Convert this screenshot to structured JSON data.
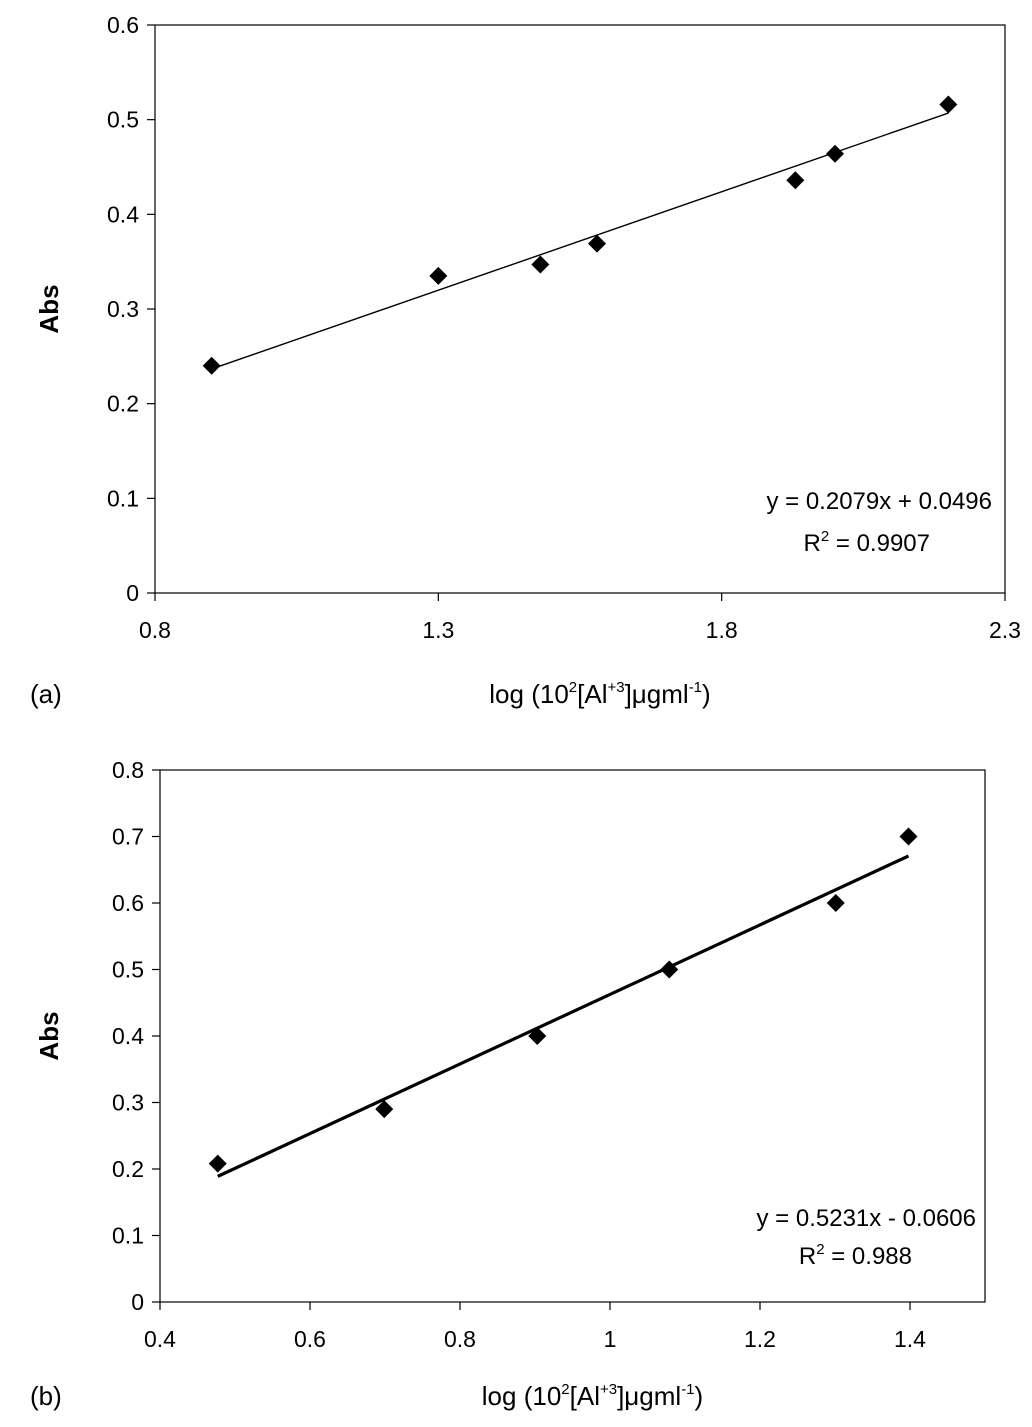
{
  "chart_data": [
    {
      "type": "scatter",
      "panel_label": "(a)",
      "ylabel": "Abs",
      "xlabel": {
        "pre": "log (10",
        "sup1": "2",
        "mid": "[Al",
        "sup2": "+3",
        "post1": "]μgml",
        "sup3": "-1",
        "post2": ")"
      },
      "xlim": [
        0.8,
        2.3
      ],
      "ylim": [
        0,
        0.6
      ],
      "xticks": [
        0.8,
        1.3,
        1.8,
        2.3
      ],
      "xtick_labels": [
        "0.8",
        "1.3",
        "1.8",
        "2.3"
      ],
      "yticks": [
        0,
        0.1,
        0.2,
        0.3,
        0.4,
        0.5,
        0.6
      ],
      "ytick_labels": [
        "0",
        "0.1",
        "0.2",
        "0.3",
        "0.4",
        "0.5",
        "0.6"
      ],
      "grid": false,
      "marker": "diamond",
      "series": [
        {
          "x": [
            0.9,
            1.3,
            1.48,
            1.58,
            1.93,
            2.0,
            2.2
          ],
          "y": [
            0.24,
            0.335,
            0.347,
            0.369,
            0.436,
            0.464,
            0.516
          ]
        }
      ],
      "trendline": {
        "slope": 0.2079,
        "intercept": 0.0496,
        "x_range": [
          0.9,
          2.2
        ]
      },
      "equation": "y = 0.2079x + 0.0496",
      "r2": {
        "prefix": "R",
        "sup": "2",
        "suffix": " = 0.9907"
      },
      "annotation_position": "bottom-right"
    },
    {
      "type": "scatter",
      "panel_label": "(b)",
      "ylabel": "Abs",
      "xlabel": {
        "pre": "log (10",
        "sup1": "2",
        "mid": "[Al",
        "sup2": "+3",
        "post1": "]μgml",
        "sup3": "-1",
        "post2": ")"
      },
      "xlim": [
        0.4,
        1.5
      ],
      "ylim": [
        0,
        0.8
      ],
      "xticks": [
        0.4,
        0.6,
        0.8,
        1.0,
        1.2,
        1.4
      ],
      "xtick_labels": [
        "0.4",
        "0.6",
        "0.8",
        "1",
        "1.2",
        "1.4"
      ],
      "yticks": [
        0,
        0.1,
        0.2,
        0.3,
        0.4,
        0.5,
        0.6,
        0.7,
        0.8
      ],
      "ytick_labels": [
        "0",
        "0.1",
        "0.2",
        "0.3",
        "0.4",
        "0.5",
        "0.6",
        "0.7",
        "0.8"
      ],
      "grid": false,
      "marker": "diamond",
      "series": [
        {
          "x": [
            0.477,
            0.699,
            0.903,
            1.079,
            1.301,
            1.398
          ],
          "y": [
            0.208,
            0.29,
            0.4,
            0.5,
            0.6,
            0.7
          ]
        }
      ],
      "trendline": {
        "slope": 0.5231,
        "intercept": -0.0606,
        "x_range": [
          0.477,
          1.398
        ]
      },
      "equation": "y = 0.5231x - 0.0606",
      "r2": {
        "prefix": "R",
        "sup": "2",
        "suffix": " = 0.988"
      },
      "annotation_position": "bottom-right"
    }
  ]
}
